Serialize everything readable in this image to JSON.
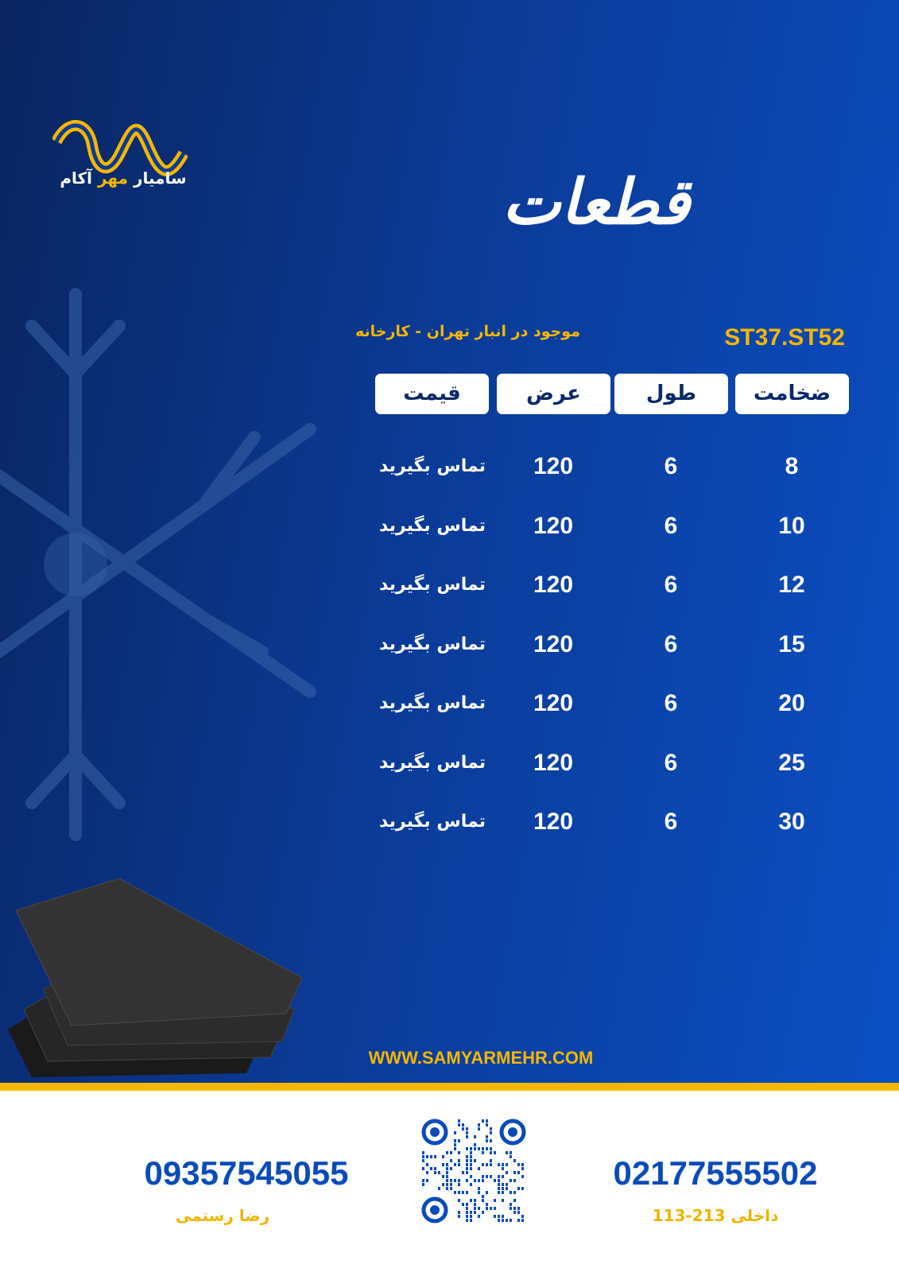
{
  "brand": {
    "name_part1": "سامیار",
    "name_part2": "مهر",
    "name_part3": "آکام"
  },
  "title": "قطعات",
  "grade": "ST37.ST52",
  "stock_note": "موجود در انبار تهران - کارخانه",
  "table": {
    "headers": [
      "ضخامت",
      "طول",
      "عرض",
      "قیمت"
    ],
    "rows": [
      [
        "8",
        "6",
        "120",
        "تماس بگیرید"
      ],
      [
        "10",
        "6",
        "120",
        "تماس بگیرید"
      ],
      [
        "12",
        "6",
        "120",
        "تماس بگیرید"
      ],
      [
        "15",
        "6",
        "120",
        "تماس بگیرید"
      ],
      [
        "20",
        "6",
        "120",
        "تماس بگیرید"
      ],
      [
        "25",
        "6",
        "120",
        "تماس بگیرید"
      ],
      [
        "30",
        "6",
        "120",
        "تماس بگیرید"
      ]
    ]
  },
  "website": "WWW.SAMYARMEHR.COM",
  "contacts": [
    {
      "phone": "02177555502",
      "note": "داخلی 213-113"
    },
    {
      "phone": "09357545055",
      "note": "رضا رستمی"
    }
  ],
  "colors": {
    "accent": "#f5b700",
    "blue": "#0b4bb8",
    "background_dark": "#0a2560"
  }
}
